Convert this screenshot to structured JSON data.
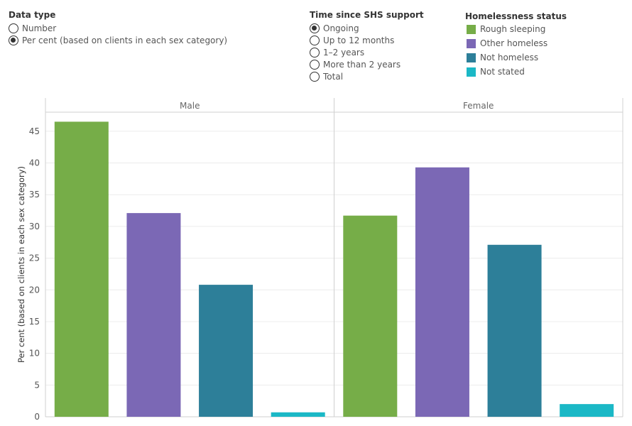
{
  "data_type": {
    "title": "Data type",
    "options": [
      {
        "label": "Number",
        "selected": false
      },
      {
        "label": "Per cent (based on clients in each sex category)",
        "selected": true
      }
    ]
  },
  "time_since": {
    "title": "Time since SHS support",
    "options": [
      {
        "label": "Ongoing",
        "selected": true
      },
      {
        "label": "Up to 12 months",
        "selected": false
      },
      {
        "label": "1–2 years",
        "selected": false
      },
      {
        "label": "More than 2 years",
        "selected": false
      },
      {
        "label": "Total",
        "selected": false
      }
    ]
  },
  "legend": {
    "title": "Homelessness status",
    "items": [
      {
        "label": "Rough sleeping",
        "color": "#76ad48"
      },
      {
        "label": "Other homeless",
        "color": "#7b68b5"
      },
      {
        "label": "Not homeless",
        "color": "#2d7f99"
      },
      {
        "label": "Not stated",
        "color": "#1bb8c6"
      }
    ]
  },
  "chart_data": {
    "type": "bar",
    "panels": [
      "Male",
      "Female"
    ],
    "categories": [
      "Rough sleeping",
      "Other homeless",
      "Not homeless",
      "Not stated"
    ],
    "series": [
      {
        "panel": "Male",
        "values": [
          46.5,
          32.1,
          20.8,
          0.7
        ]
      },
      {
        "panel": "Female",
        "values": [
          31.7,
          39.3,
          27.1,
          2.0
        ]
      }
    ],
    "ylabel": "Per cent (based on clients in each sex category)",
    "ylim": [
      0,
      48
    ],
    "yticks": [
      0,
      5,
      10,
      15,
      20,
      25,
      30,
      35,
      40,
      45
    ],
    "grid": true
  }
}
